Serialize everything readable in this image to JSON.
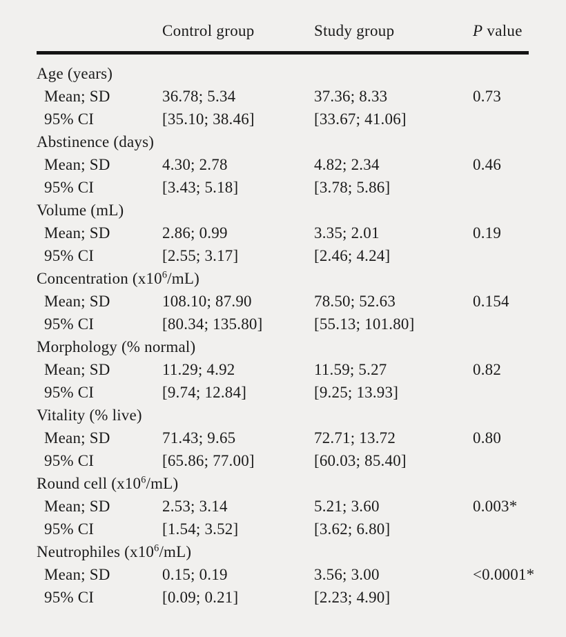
{
  "page": {
    "background_color": "#f1f0ee",
    "text_color": "#1b1b1b",
    "rule_color": "#141414"
  },
  "table": {
    "headers": {
      "row_label": "",
      "control": "Control group",
      "study": "Study group",
      "p_italic": "P",
      "p_rest": " value"
    },
    "row_labels": {
      "mean_sd": "Mean; SD",
      "ci": "95% CI"
    },
    "sections": [
      {
        "label": "Age (years)",
        "rows": [
          {
            "label": "Mean; SD",
            "control": "36.78; 5.34",
            "study": "37.36; 8.33",
            "p": "0.73"
          },
          {
            "label": "95% CI",
            "control": "[35.10; 38.46]",
            "study": "[33.67; 41.06]",
            "p": ""
          }
        ]
      },
      {
        "label": "Abstinence (days)",
        "rows": [
          {
            "label": "Mean; SD",
            "control": "4.30; 2.78",
            "study": "4.82; 2.34",
            "p": "0.46"
          },
          {
            "label": "95% CI",
            "control": "[3.43; 5.18]",
            "study": "[3.78; 5.86]",
            "p": ""
          }
        ]
      },
      {
        "label": "Volume (mL)",
        "rows": [
          {
            "label": "Mean; SD",
            "control": "2.86; 0.99",
            "study": "3.35; 2.01",
            "p": "0.19"
          },
          {
            "label": "95% CI",
            "control": "[2.55; 3.17]",
            "study": "[2.46; 4.24]",
            "p": ""
          }
        ]
      },
      {
        "label": "Concentration (x10^6/mL)",
        "rows": [
          {
            "label": "Mean; SD",
            "control": "108.10; 87.90",
            "study": "78.50; 52.63",
            "p": "0.154"
          },
          {
            "label": "95% CI",
            "control": "[80.34; 135.80]",
            "study": "[55.13; 101.80]",
            "p": ""
          }
        ]
      },
      {
        "label": "Morphology (% normal)",
        "rows": [
          {
            "label": "Mean; SD",
            "control": "11.29; 4.92",
            "study": "11.59; 5.27",
            "p": "0.82"
          },
          {
            "label": "95% CI",
            "control": "[9.74; 12.84]",
            "study": "[9.25; 13.93]",
            "p": ""
          }
        ]
      },
      {
        "label": "Vitality (% live)",
        "rows": [
          {
            "label": "Mean; SD",
            "control": "71.43; 9.65",
            "study": "72.71; 13.72",
            "p": "0.80"
          },
          {
            "label": "95% CI",
            "control": "[65.86; 77.00]",
            "study": "[60.03; 85.40]",
            "p": ""
          }
        ]
      },
      {
        "label": "Round cell (x10^6/mL)",
        "rows": [
          {
            "label": "Mean; SD",
            "control": "2.53; 3.14",
            "study": "5.21; 3.60",
            "p": "0.003*"
          },
          {
            "label": "95% CI",
            "control": "[1.54; 3.52]",
            "study": "[3.62; 6.80]",
            "p": ""
          }
        ]
      },
      {
        "label": "Neutrophiles (x10^6/mL)",
        "rows": [
          {
            "label": "Mean; SD",
            "control": "0.15; 0.19",
            "study": "3.56; 3.00",
            "p": "<0.0001*"
          },
          {
            "label": "95% CI",
            "control": "[0.09; 0.21]",
            "study": "[2.23; 4.90]",
            "p": ""
          }
        ]
      }
    ]
  }
}
